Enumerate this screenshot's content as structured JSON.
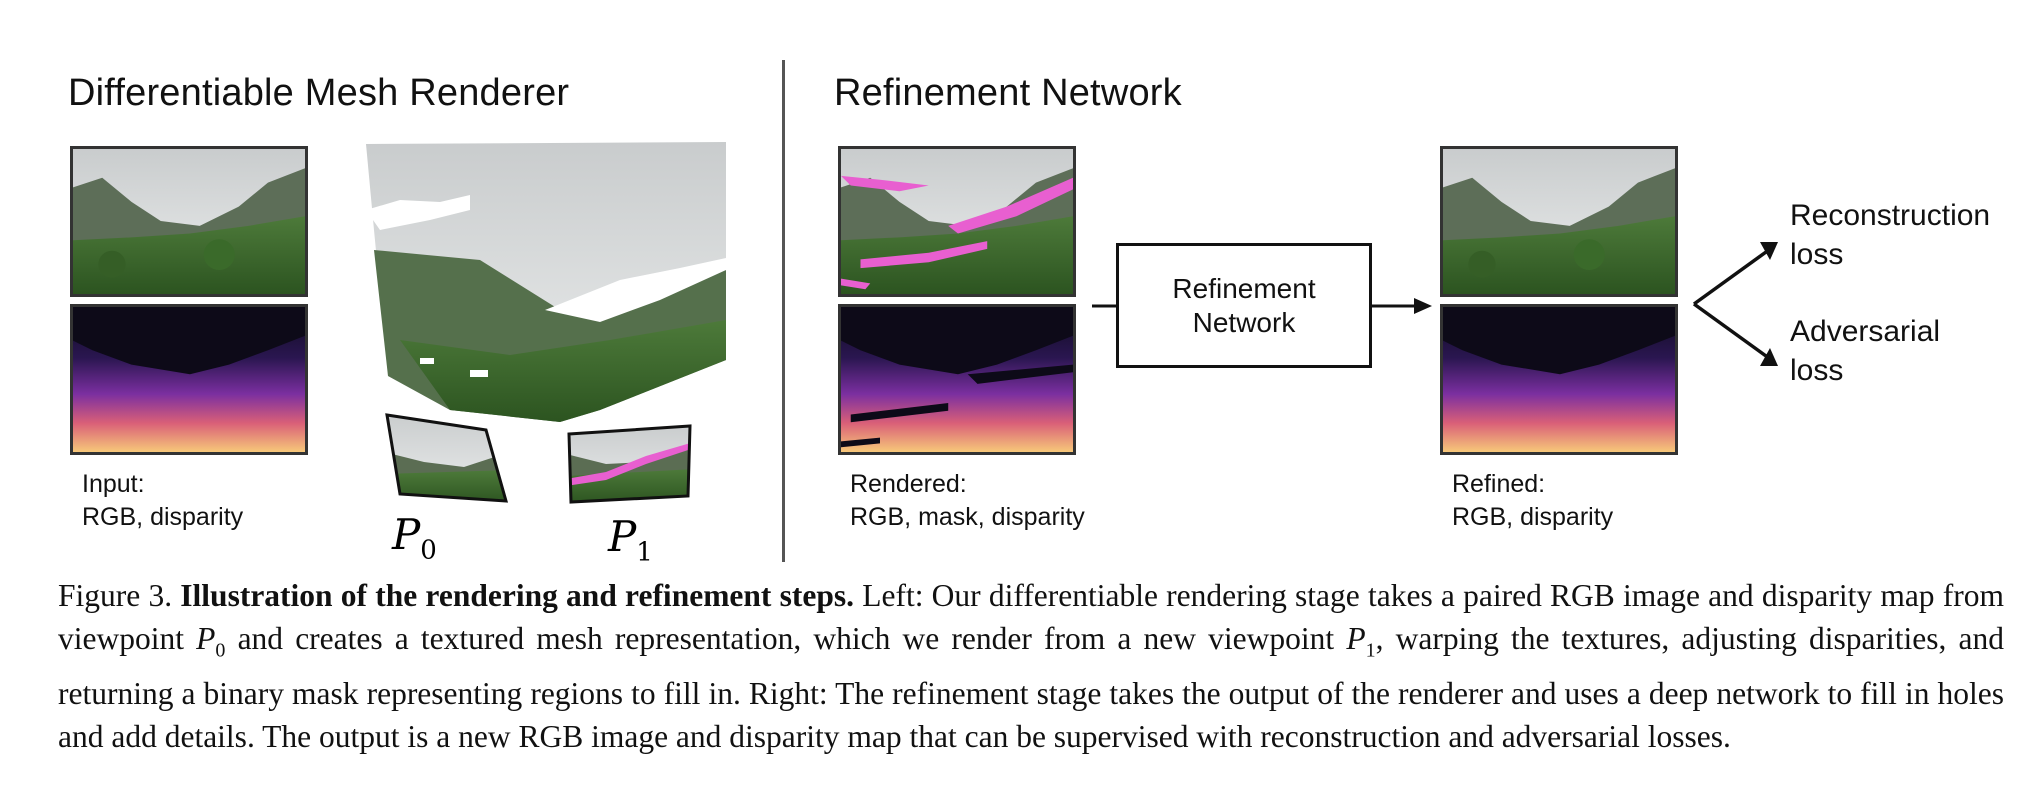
{
  "left_section": {
    "title": "Differentiable Mesh Renderer"
  },
  "right_section": {
    "title": "Refinement Network"
  },
  "input_label": {
    "line1": "Input:",
    "line2": "RGB, disparity"
  },
  "viewpoints": {
    "p0": "P",
    "p0_sub": "0",
    "p1": "P",
    "p1_sub": "1"
  },
  "rendered_label": {
    "line1": "Rendered:",
    "line2": "RGB, mask, disparity"
  },
  "refined_label": {
    "line1": "Refined:",
    "line2": "RGB, disparity"
  },
  "network_box": {
    "line1": "Refinement",
    "line2": "Network"
  },
  "losses": {
    "recon_1": "Reconstruction",
    "recon_2": "loss",
    "adv_1": "Adversarial",
    "adv_2": "loss"
  },
  "caption": {
    "fig": "Figure 3.",
    "bold": "Illustration of the rendering and refinement steps.",
    "t1": " Left: Our differentiable rendering stage takes a paired RGB image and disparity map from viewpoint ",
    "p0": "P",
    "p0_sub": "0",
    "t2": " and creates a textured mesh representation, which we render from a new viewpoint ",
    "p1": "P",
    "p1_sub": "1",
    "t3": ", warping the textures, adjusting disparities, and returning a binary mask representing regions to fill in. Right: The refinement stage takes the output of the renderer and uses a deep network to fill in holes and add details. The output is a new RGB image and disparity map that can be supervised with reconstruction and adversarial losses."
  },
  "colors": {
    "mask": "#e85fd0",
    "sky": "#d8dadb",
    "vegetation": "#3e6a2e",
    "disparity_far": "#120f22",
    "disparity_mid": "#6a2c9c",
    "disparity_near": "#f2b66a"
  }
}
